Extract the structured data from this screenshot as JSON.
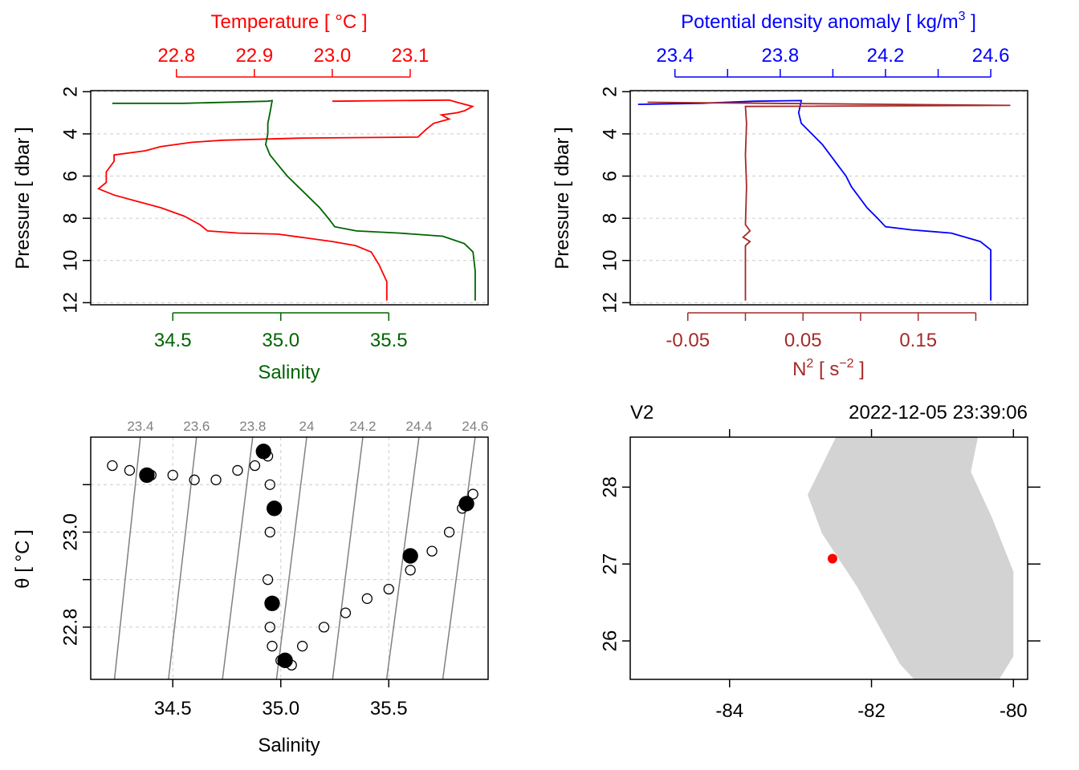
{
  "colors": {
    "temperature": "#ff0000",
    "salinity": "#006400",
    "density": "#0000ff",
    "n2": "#a52a2a",
    "isopycnal": "#808080",
    "grid": "#cccccc",
    "land": "#d3d3d3",
    "station": "#ff0000"
  },
  "chart_data": [
    {
      "type": "line",
      "panel": "salinity-temperature-profile",
      "top_axis_label": "Temperature [ °C ]",
      "top_ticks": [
        "22.8",
        "22.9",
        "23.0",
        "23.1"
      ],
      "top_range": [
        22.69,
        23.2
      ],
      "bottom_axis_label": "Salinity",
      "bottom_ticks": [
        "34.5",
        "35.0",
        "35.5"
      ],
      "bottom_range": [
        34.12,
        35.96
      ],
      "ylabel": "Pressure [ dbar ]",
      "y_ticks": [
        "2",
        "4",
        "6",
        "8",
        "10",
        "12"
      ],
      "ylim": [
        12.1,
        1.95
      ],
      "series": [
        {
          "name": "Temperature",
          "axis": "top",
          "points": [
            [
              23.0,
              2.45
            ],
            [
              23.15,
              2.4
            ],
            [
              23.16,
              2.5
            ],
            [
              23.18,
              2.7
            ],
            [
              23.17,
              2.9
            ],
            [
              23.16,
              3.0
            ],
            [
              23.14,
              3.1
            ],
            [
              23.15,
              3.3
            ],
            [
              23.13,
              3.5
            ],
            [
              23.12,
              3.8
            ],
            [
              23.11,
              4.15
            ],
            [
              22.96,
              4.2
            ],
            [
              22.86,
              4.3
            ],
            [
              22.82,
              4.4
            ],
            [
              22.78,
              4.6
            ],
            [
              22.76,
              4.8
            ],
            [
              22.72,
              5.0
            ],
            [
              22.72,
              5.3
            ],
            [
              22.71,
              5.8
            ],
            [
              22.71,
              6.3
            ],
            [
              22.7,
              6.6
            ],
            [
              22.72,
              6.9
            ],
            [
              22.75,
              7.2
            ],
            [
              22.78,
              7.5
            ],
            [
              22.81,
              7.9
            ],
            [
              22.83,
              8.3
            ],
            [
              22.84,
              8.6
            ],
            [
              22.88,
              8.7
            ],
            [
              22.93,
              8.75
            ],
            [
              22.96,
              8.9
            ],
            [
              23.0,
              9.1
            ],
            [
              23.03,
              9.3
            ],
            [
              23.05,
              9.6
            ],
            [
              23.06,
              10.2
            ],
            [
              23.07,
              11.0
            ],
            [
              23.07,
              11.9
            ]
          ]
        },
        {
          "name": "Salinity",
          "axis": "bottom",
          "points": [
            [
              34.22,
              2.55
            ],
            [
              34.55,
              2.55
            ],
            [
              34.94,
              2.45
            ],
            [
              34.96,
              2.42
            ],
            [
              34.95,
              3.0
            ],
            [
              34.94,
              3.5
            ],
            [
              34.94,
              4.0
            ],
            [
              34.93,
              4.5
            ],
            [
              34.95,
              5.0
            ],
            [
              34.99,
              5.5
            ],
            [
              35.03,
              6.0
            ],
            [
              35.08,
              6.5
            ],
            [
              35.13,
              7.0
            ],
            [
              35.18,
              7.5
            ],
            [
              35.22,
              8.0
            ],
            [
              35.25,
              8.4
            ],
            [
              35.35,
              8.6
            ],
            [
              35.55,
              8.7
            ],
            [
              35.75,
              8.85
            ],
            [
              35.85,
              9.2
            ],
            [
              35.89,
              9.6
            ],
            [
              35.9,
              10.5
            ],
            [
              35.9,
              11.9
            ]
          ]
        }
      ]
    },
    {
      "type": "line",
      "panel": "density-n2-profile",
      "top_axis_label": "Potential density anomaly [ kg/m",
      "top_axis_label_sup": "3",
      "top_axis_label_end": " ]",
      "top_ticks": [
        "23.4",
        "23.8",
        "24.2",
        "24.6"
      ],
      "top_range": [
        23.23,
        24.74
      ],
      "bottom_axis_label": "N",
      "bottom_axis_label_sup": "2",
      "bottom_axis_label_end": " [ s",
      "bottom_axis_label_sup2": "−2",
      "bottom_axis_label_end2": " ]",
      "bottom_ticks": [
        "-0.05",
        "0.05",
        "0.15"
      ],
      "bottom_range": [
        -0.1,
        0.245
      ],
      "ylabel": "Pressure [ dbar ]",
      "y_ticks": [
        "2",
        "4",
        "6",
        "8",
        "10",
        "12"
      ],
      "ylim": [
        12.1,
        1.95
      ],
      "series": [
        {
          "name": "Potential density anomaly",
          "axis": "top",
          "points": [
            [
              23.26,
              2.6
            ],
            [
              23.5,
              2.55
            ],
            [
              23.7,
              2.45
            ],
            [
              23.88,
              2.42
            ],
            [
              23.87,
              3.0
            ],
            [
              23.88,
              3.5
            ],
            [
              23.92,
              4.0
            ],
            [
              23.96,
              4.5
            ],
            [
              23.99,
              5.0
            ],
            [
              24.02,
              5.5
            ],
            [
              24.05,
              6.0
            ],
            [
              24.07,
              6.5
            ],
            [
              24.1,
              7.0
            ],
            [
              24.13,
              7.5
            ],
            [
              24.17,
              8.0
            ],
            [
              24.2,
              8.4
            ],
            [
              24.3,
              8.55
            ],
            [
              24.45,
              8.7
            ],
            [
              24.56,
              9.1
            ],
            [
              24.6,
              9.5
            ],
            [
              24.6,
              10.5
            ],
            [
              24.6,
              11.9
            ]
          ]
        },
        {
          "name": "N2",
          "axis": "bottom",
          "points": [
            [
              -0.085,
              2.5
            ],
            [
              0.23,
              2.65
            ],
            [
              0.0,
              2.7
            ],
            [
              0.001,
              3.5
            ],
            [
              0.0,
              5.0
            ],
            [
              0.001,
              6.5
            ],
            [
              0.0,
              8.3
            ],
            [
              0.004,
              8.6
            ],
            [
              -0.002,
              8.9
            ],
            [
              0.004,
              9.1
            ],
            [
              0.0,
              9.3
            ],
            [
              0.0,
              10.5
            ],
            [
              0.0,
              11.9
            ]
          ]
        }
      ]
    },
    {
      "type": "scatter",
      "panel": "ts-diagram",
      "xlabel": "Salinity",
      "ylabel": "θ [ °C ]",
      "x_ticks": [
        "34.5",
        "35.0",
        "35.5"
      ],
      "xlim": [
        34.12,
        35.96
      ],
      "y_ticks": [
        "22.8",
        "23.0"
      ],
      "ylim": [
        22.69,
        23.2
      ],
      "isopycnals": [
        {
          "label": "23.4",
          "s_top": 34.35,
          "s_bottom": 34.23
        },
        {
          "label": "23.6",
          "s_top": 34.61,
          "s_bottom": 34.48
        },
        {
          "label": "23.8",
          "s_top": 34.87,
          "s_bottom": 34.73
        },
        {
          "label": "24",
          "s_top": 35.12,
          "s_bottom": 34.98
        },
        {
          "label": "24.2",
          "s_top": 35.38,
          "s_bottom": 35.24
        },
        {
          "label": "24.4",
          "s_top": 35.64,
          "s_bottom": 35.49
        },
        {
          "label": "24.6",
          "s_top": 35.9,
          "s_bottom": 35.75
        }
      ],
      "points": [
        [
          34.22,
          23.14
        ],
        [
          34.3,
          23.13
        ],
        [
          34.4,
          23.12
        ],
        [
          34.5,
          23.12
        ],
        [
          34.6,
          23.11
        ],
        [
          34.7,
          23.11
        ],
        [
          34.8,
          23.13
        ],
        [
          34.88,
          23.14
        ],
        [
          34.94,
          23.16
        ],
        [
          34.95,
          23.1
        ],
        [
          34.95,
          23.0
        ],
        [
          34.94,
          22.9
        ],
        [
          34.95,
          22.8
        ],
        [
          34.96,
          22.76
        ],
        [
          35.0,
          22.73
        ],
        [
          35.05,
          22.72
        ],
        [
          35.1,
          22.76
        ],
        [
          35.2,
          22.8
        ],
        [
          35.3,
          22.83
        ],
        [
          35.4,
          22.86
        ],
        [
          35.5,
          22.88
        ],
        [
          35.6,
          22.92
        ],
        [
          35.7,
          22.96
        ],
        [
          35.78,
          23.0
        ],
        [
          35.84,
          23.05
        ],
        [
          35.89,
          23.08
        ]
      ],
      "clusters": [
        [
          34.38,
          23.12
        ],
        [
          34.92,
          23.17
        ],
        [
          34.97,
          23.05
        ],
        [
          34.96,
          22.85
        ],
        [
          35.02,
          22.73
        ],
        [
          35.6,
          22.95
        ],
        [
          35.86,
          23.06
        ]
      ]
    },
    {
      "type": "map",
      "panel": "station-map",
      "station_label": "V2",
      "timestamp": "2022-12-05 23:39:06",
      "x_ticks": [
        "-84",
        "-82",
        "-80"
      ],
      "xlim": [
        -85.4,
        -79.8
      ],
      "y_ticks": [
        "26",
        "27",
        "28"
      ],
      "ylim": [
        25.5,
        28.65
      ],
      "land_polygon": [
        [
          -82.5,
          28.65
        ],
        [
          -82.9,
          27.9
        ],
        [
          -82.7,
          27.4
        ],
        [
          -82.2,
          26.7
        ],
        [
          -81.9,
          26.2
        ],
        [
          -81.6,
          25.7
        ],
        [
          -81.4,
          25.5
        ],
        [
          -80.2,
          25.5
        ],
        [
          -80.0,
          25.8
        ],
        [
          -80.0,
          26.9
        ],
        [
          -80.3,
          27.6
        ],
        [
          -80.6,
          28.2
        ],
        [
          -80.5,
          28.65
        ]
      ],
      "station": {
        "lon": -82.55,
        "lat": 27.07
      }
    }
  ]
}
